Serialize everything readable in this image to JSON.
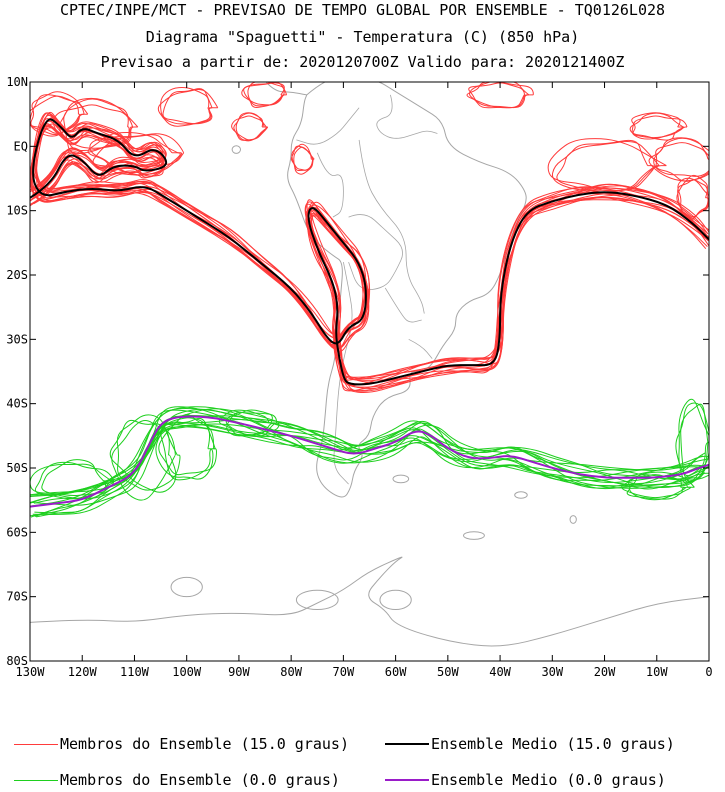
{
  "header": {
    "line1": "CPTEC/INPE/MCT - PREVISAO DE TEMPO GLOBAL POR ENSEMBLE - TQ0126L028",
    "line2": "Diagrama \"Spaguetti\" - Temperatura (C) (850 hPa)",
    "line3": "Previsao a partir de: 2020120700Z  Valido para: 2020121400Z"
  },
  "map": {
    "lat_labels": [
      "10N",
      "EQ",
      "10S",
      "20S",
      "30S",
      "40S",
      "50S",
      "60S",
      "70S",
      "80S"
    ],
    "lon_labels": [
      "130W",
      "120W",
      "110W",
      "100W",
      "90W",
      "80W",
      "70W",
      "60W",
      "50W",
      "40W",
      "30W",
      "20W",
      "10W",
      "0"
    ],
    "lat_range": [
      -80,
      10
    ],
    "lon_range": [
      -130,
      0
    ],
    "colors": {
      "members_15": "#ff3b3b",
      "mean_15": "#000000",
      "members_0": "#1ecf1e",
      "mean_0": "#9a1cc9",
      "coast": "#a6a6a6"
    },
    "mean_15_path": [
      [
        -130,
        -8
      ],
      [
        -126,
        -6
      ],
      [
        -123,
        -1
      ],
      [
        -120,
        -2
      ],
      [
        -117,
        -5
      ],
      [
        -114,
        -3
      ],
      [
        -110,
        -3
      ],
      [
        -108,
        -4
      ],
      [
        -103,
        -3
      ],
      [
        -106,
        0
      ],
      [
        -110,
        -2
      ],
      [
        -113,
        1
      ],
      [
        -117,
        2
      ],
      [
        -120,
        3
      ],
      [
        -122,
        1
      ],
      [
        -124,
        3
      ],
      [
        -127,
        5
      ],
      [
        -130,
        -4
      ],
      [
        -128,
        -8
      ],
      [
        -123,
        -7
      ],
      [
        -118,
        -6.5
      ],
      [
        -113,
        -7
      ],
      [
        -108,
        -6
      ],
      [
        -104,
        -8
      ],
      [
        -98,
        -11
      ],
      [
        -92,
        -14
      ],
      [
        -86,
        -18
      ],
      [
        -80,
        -22
      ],
      [
        -76,
        -26
      ],
      [
        -73,
        -30
      ],
      [
        -71,
        -31
      ],
      [
        -69,
        -28
      ],
      [
        -66,
        -27
      ],
      [
        -65.5,
        -22
      ],
      [
        -67,
        -18
      ],
      [
        -70,
        -15
      ],
      [
        -73,
        -12
      ],
      [
        -76,
        -9
      ],
      [
        -77,
        -11
      ],
      [
        -75,
        -16
      ],
      [
        -72,
        -21
      ],
      [
        -71,
        -25
      ],
      [
        -71.5,
        -29
      ],
      [
        -71,
        -32
      ],
      [
        -70,
        -36
      ],
      [
        -69,
        -37
      ],
      [
        -65,
        -37
      ],
      [
        -60,
        -36
      ],
      [
        -55,
        -35
      ],
      [
        -50,
        -34
      ],
      [
        -45,
        -34
      ],
      [
        -41,
        -34
      ],
      [
        -40,
        -30
      ],
      [
        -40,
        -23
      ],
      [
        -38,
        -15
      ],
      [
        -35,
        -10
      ],
      [
        -30,
        -8.5
      ],
      [
        -25,
        -7.5
      ],
      [
        -20,
        -7
      ],
      [
        -15,
        -7.5
      ],
      [
        -8,
        -9
      ],
      [
        -3,
        -12
      ],
      [
        0,
        -14.5
      ]
    ],
    "mean_0_path": [
      [
        -130,
        -56
      ],
      [
        -125,
        -55.5
      ],
      [
        -120,
        -55
      ],
      [
        -115,
        -53
      ],
      [
        -110,
        -51
      ],
      [
        -107,
        -46
      ],
      [
        -105,
        -43
      ],
      [
        -102,
        -42
      ],
      [
        -96,
        -42
      ],
      [
        -90,
        -43
      ],
      [
        -85,
        -44
      ],
      [
        -80,
        -45
      ],
      [
        -76,
        -46
      ],
      [
        -72,
        -47
      ],
      [
        -68,
        -48
      ],
      [
        -64,
        -47
      ],
      [
        -60,
        -46
      ],
      [
        -56,
        -44
      ],
      [
        -53,
        -45
      ],
      [
        -50,
        -47
      ],
      [
        -46,
        -48.5
      ],
      [
        -42,
        -48.5
      ],
      [
        -38,
        -48
      ],
      [
        -34,
        -49
      ],
      [
        -30,
        -50
      ],
      [
        -25,
        -51
      ],
      [
        -20,
        -51.5
      ],
      [
        -15,
        -51.5
      ],
      [
        -10,
        -51.5
      ],
      [
        -5,
        -51
      ],
      [
        -2,
        -50
      ],
      [
        0,
        -49.5
      ]
    ]
  },
  "legend": {
    "members_15": "Membros do Ensemble (15.0 graus)",
    "mean_15": "Ensemble Medio (15.0 graus)",
    "members_0": "Membros do Ensemble (0.0 graus)",
    "mean_0": "Ensemble Medio (0.0 graus)"
  }
}
